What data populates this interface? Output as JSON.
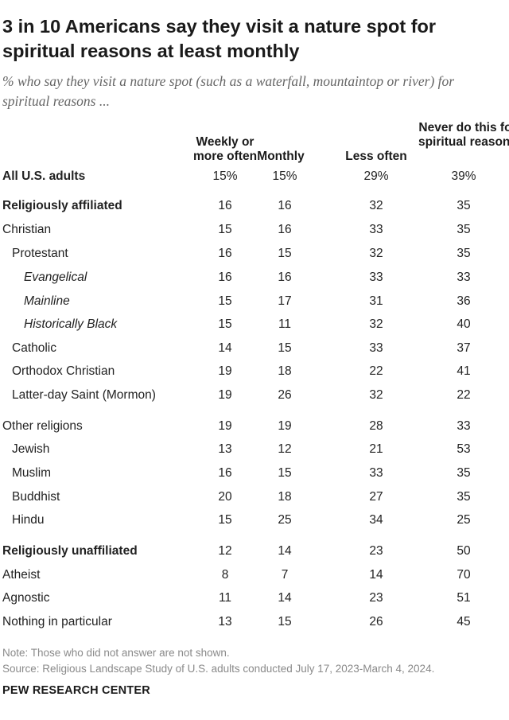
{
  "title": "3 in 10 Americans say they visit a nature spot for spiritual reasons at least monthly",
  "subtitle": "% who say they visit a nature spot (such as a waterfall, mountaintop or river) for spiritual reasons ...",
  "columns": [
    "Weekly or more often",
    "Monthly",
    "Less often",
    "Never do this for spiritual reasons"
  ],
  "chart_data": {
    "type": "table",
    "columns": [
      "Weekly or more often",
      "Monthly",
      "Less often",
      "Never do this for spiritual reasons"
    ],
    "rows": [
      {
        "label": "All U.S. adults",
        "values": [
          "15%",
          "15%",
          "29%",
          "39%"
        ],
        "bold": true
      },
      {
        "label": "Religiously affiliated",
        "values": [
          "16",
          "16",
          "32",
          "35"
        ],
        "bold": true
      },
      {
        "label": "Christian",
        "values": [
          "15",
          "16",
          "33",
          "35"
        ]
      },
      {
        "label": "Protestant",
        "values": [
          "16",
          "15",
          "32",
          "35"
        ]
      },
      {
        "label": "Evangelical",
        "values": [
          "16",
          "16",
          "33",
          "33"
        ],
        "italic": true
      },
      {
        "label": "Mainline",
        "values": [
          "15",
          "17",
          "31",
          "36"
        ],
        "italic": true
      },
      {
        "label": "Historically Black",
        "values": [
          "15",
          "11",
          "32",
          "40"
        ],
        "italic": true
      },
      {
        "label": "Catholic",
        "values": [
          "14",
          "15",
          "33",
          "37"
        ]
      },
      {
        "label": "Orthodox Christian",
        "values": [
          "19",
          "18",
          "22",
          "41"
        ]
      },
      {
        "label": "Latter-day Saint (Mormon)",
        "values": [
          "19",
          "26",
          "32",
          "22"
        ]
      },
      {
        "label": "Other religions",
        "values": [
          "19",
          "19",
          "28",
          "33"
        ]
      },
      {
        "label": "Jewish",
        "values": [
          "13",
          "12",
          "21",
          "53"
        ]
      },
      {
        "label": "Muslim",
        "values": [
          "16",
          "15",
          "33",
          "35"
        ]
      },
      {
        "label": "Buddhist",
        "values": [
          "20",
          "18",
          "27",
          "35"
        ]
      },
      {
        "label": "Hindu",
        "values": [
          "15",
          "25",
          "34",
          "25"
        ]
      },
      {
        "label": "Religiously unaffiliated",
        "values": [
          "12",
          "14",
          "23",
          "50"
        ],
        "bold": true
      },
      {
        "label": "Atheist",
        "values": [
          "8",
          "7",
          "14",
          "70"
        ]
      },
      {
        "label": "Agnostic",
        "values": [
          "11",
          "14",
          "23",
          "51"
        ]
      },
      {
        "label": "Nothing in particular",
        "values": [
          "13",
          "15",
          "26",
          "45"
        ]
      }
    ]
  },
  "note": "Note: Those who did not answer are not shown.",
  "source": "Source: Religious Landscape Study of U.S. adults conducted July 17, 2023-March 4, 2024.",
  "brand": "PEW RESEARCH CENTER"
}
